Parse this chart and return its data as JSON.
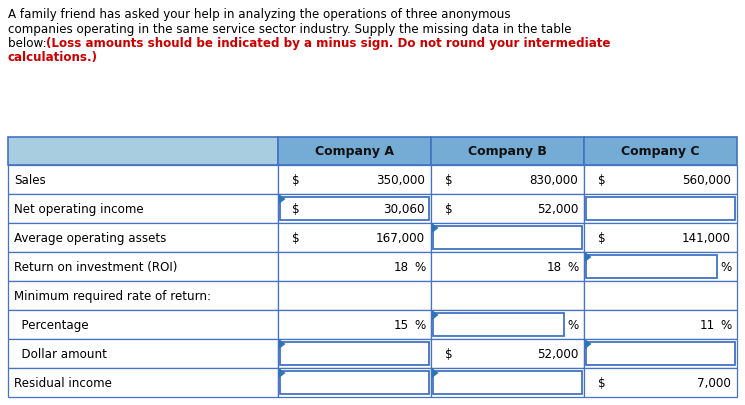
{
  "header_bg": "#74acd5",
  "header_label_col_bg": "#a8cce0",
  "header_labels": [
    "Company A",
    "Company B",
    "Company C"
  ],
  "rows": [
    {
      "label": "Sales",
      "a_dollar": true,
      "a_val": "350,000",
      "a_pct": false,
      "a_blank": false,
      "a_arrow": false,
      "b_dollar": true,
      "b_val": "830,000",
      "b_pct": false,
      "b_blank": false,
      "b_arrow": false,
      "c_dollar": true,
      "c_val": "560,000",
      "c_pct": false,
      "c_blank": false,
      "c_arrow": false
    },
    {
      "label": "Net operating income",
      "a_dollar": true,
      "a_val": "30,060",
      "a_pct": false,
      "a_blank": true,
      "a_arrow": true,
      "b_dollar": true,
      "b_val": "52,000",
      "b_pct": false,
      "b_blank": false,
      "b_arrow": false,
      "c_dollar": false,
      "c_val": "",
      "c_pct": false,
      "c_blank": true,
      "c_arrow": false
    },
    {
      "label": "Average operating assets",
      "a_dollar": true,
      "a_val": "167,000",
      "a_pct": false,
      "a_blank": false,
      "a_arrow": false,
      "b_dollar": false,
      "b_val": "",
      "b_pct": false,
      "b_blank": true,
      "b_arrow": true,
      "c_dollar": true,
      "c_val": "141,000",
      "c_pct": false,
      "c_blank": false,
      "c_arrow": false
    },
    {
      "label": "Return on investment (ROI)",
      "a_dollar": false,
      "a_val": "18",
      "a_pct": true,
      "a_blank": false,
      "a_arrow": false,
      "b_dollar": false,
      "b_val": "18",
      "b_pct": true,
      "b_blank": false,
      "b_arrow": false,
      "c_dollar": false,
      "c_val": "",
      "c_pct": true,
      "c_blank": true,
      "c_arrow": true
    },
    {
      "label": "Minimum required rate of return:",
      "a_dollar": false,
      "a_val": "",
      "a_pct": false,
      "a_blank": false,
      "a_arrow": false,
      "b_dollar": false,
      "b_val": "",
      "b_pct": false,
      "b_blank": false,
      "b_arrow": false,
      "c_dollar": false,
      "c_val": "",
      "c_pct": false,
      "c_blank": false,
      "c_arrow": false
    },
    {
      "label": "  Percentage",
      "a_dollar": false,
      "a_val": "15",
      "a_pct": true,
      "a_blank": false,
      "a_arrow": false,
      "b_dollar": false,
      "b_val": "",
      "b_pct": true,
      "b_blank": true,
      "b_arrow": true,
      "c_dollar": false,
      "c_val": "11",
      "c_pct": true,
      "c_blank": false,
      "c_arrow": false
    },
    {
      "label": "  Dollar amount",
      "a_dollar": false,
      "a_val": "",
      "a_pct": false,
      "a_blank": true,
      "a_arrow": true,
      "b_dollar": true,
      "b_val": "52,000",
      "b_pct": false,
      "b_blank": false,
      "b_arrow": false,
      "c_dollar": false,
      "c_val": "",
      "c_pct": false,
      "c_blank": true,
      "c_arrow": true
    },
    {
      "label": "Residual income",
      "a_dollar": false,
      "a_val": "",
      "a_pct": false,
      "a_blank": true,
      "a_arrow": true,
      "b_dollar": false,
      "b_val": "",
      "b_pct": false,
      "b_blank": true,
      "b_arrow": true,
      "c_dollar": true,
      "c_val": "7,000",
      "c_pct": false,
      "c_blank": false,
      "c_arrow": false
    }
  ],
  "border_color": "#4472c4",
  "text_color": "#000000",
  "red_color": "#cc0000",
  "arrow_color": "#2e75b6"
}
